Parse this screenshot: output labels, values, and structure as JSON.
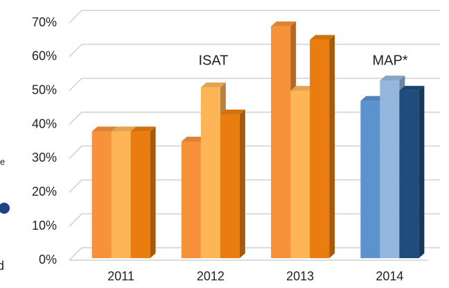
{
  "chart_data": {
    "type": "bar3d",
    "categories": [
      "2011",
      "2012",
      "2013",
      "2014"
    ],
    "series": [
      {
        "values": [
          38,
          35,
          69,
          47
        ],
        "colors": [
          "#f7923a",
          "#f7923a",
          "#f7923a",
          "#5b93cf"
        ]
      },
      {
        "values": [
          38,
          51,
          50,
          53
        ],
        "colors": [
          "#fdb555",
          "#fdb555",
          "#fdb555",
          "#95b7dd"
        ]
      },
      {
        "values": [
          38,
          43,
          65,
          50
        ],
        "colors": [
          "#ea7d10",
          "#ea7d10",
          "#ea7d10",
          "#1f4c7c"
        ]
      }
    ],
    "ylim": [
      0,
      70
    ],
    "yticks": [
      {
        "value": 0,
        "label": "0%"
      },
      {
        "value": 10,
        "label": "10%"
      },
      {
        "value": 20,
        "label": "20%"
      },
      {
        "value": 30,
        "label": "30%"
      },
      {
        "value": 40,
        "label": "40%"
      },
      {
        "value": 50,
        "label": "50%"
      },
      {
        "value": 60,
        "label": "60%"
      },
      {
        "value": 70,
        "label": "70%"
      }
    ],
    "grid": true,
    "annotations": [
      {
        "text": "ISAT",
        "color": "#e8731a"
      },
      {
        "text": "MAP*",
        "color": "#2b3d72"
      }
    ],
    "fragments": [
      "e",
      "d"
    ]
  }
}
